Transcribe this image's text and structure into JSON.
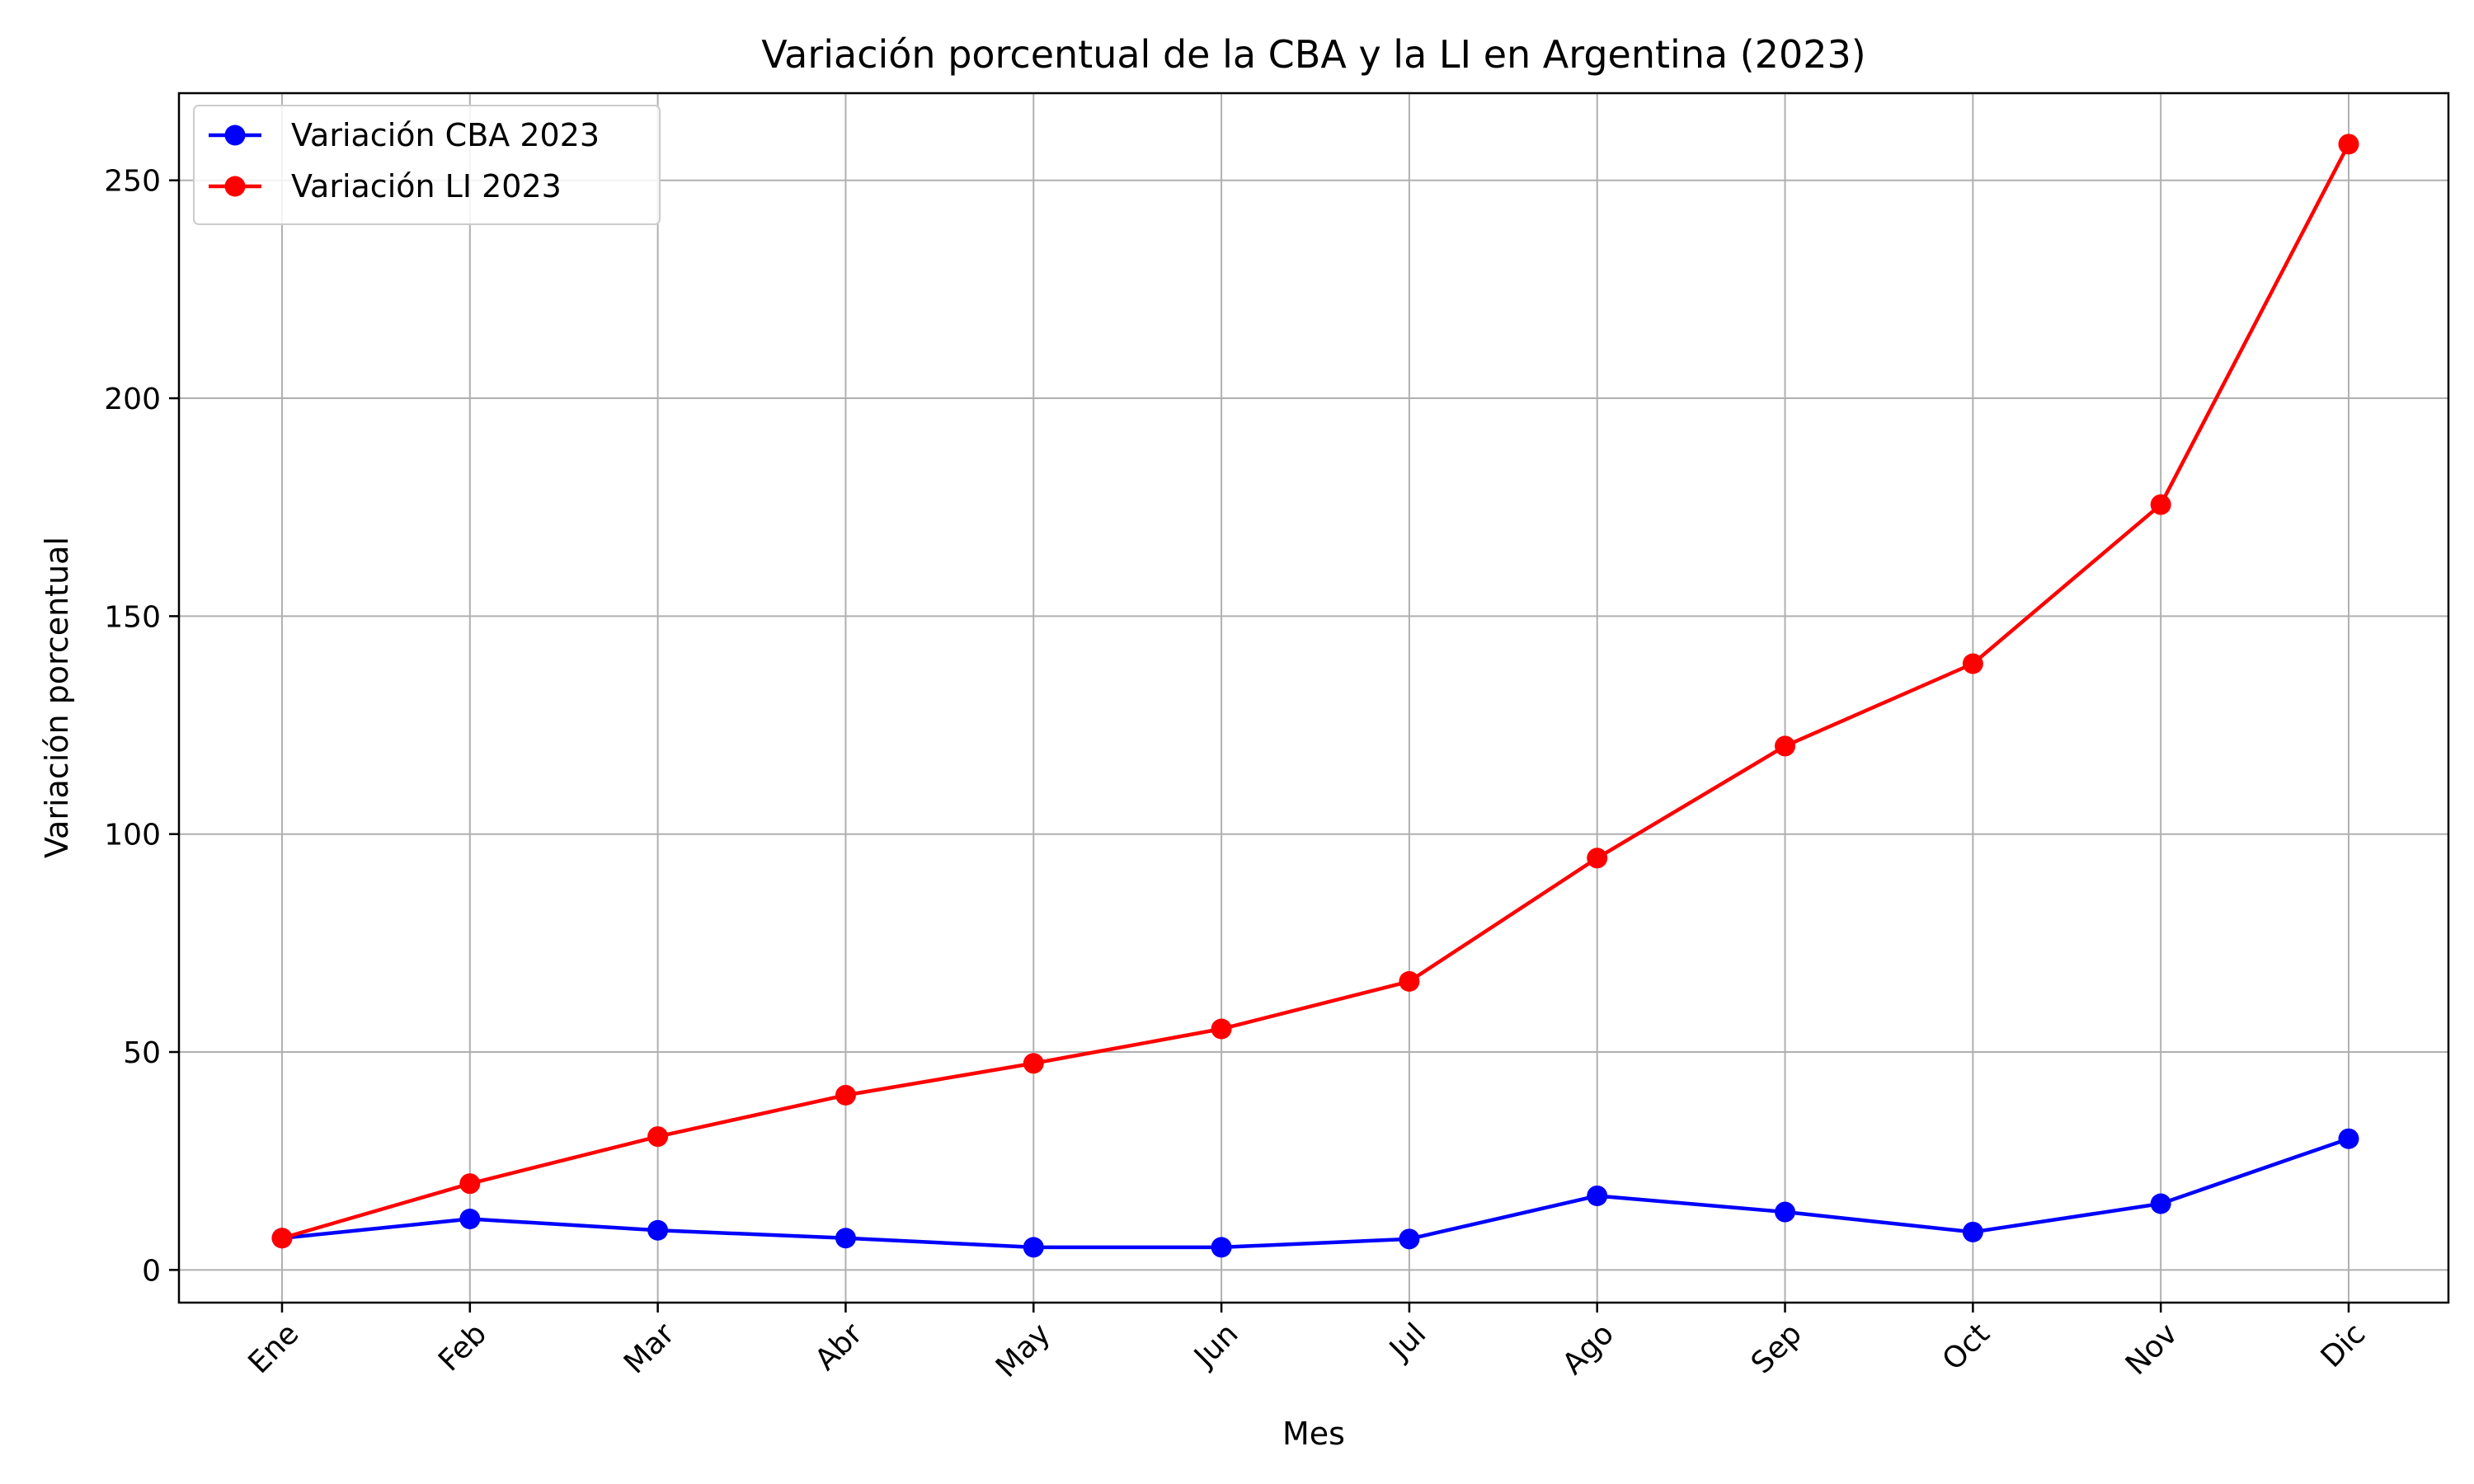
{
  "chart_data": {
    "type": "line",
    "title": "Variación porcentual de la CBA y la LI en Argentina (2023)",
    "xlabel": "Mes",
    "ylabel": "Variación porcentual",
    "categories": [
      "Ene",
      "Feb",
      "Mar",
      "Abr",
      "May",
      "Jun",
      "Jul",
      "Ago",
      "Sep",
      "Oct",
      "Nov",
      "Dic"
    ],
    "ylim": [
      -7.5,
      270
    ],
    "yticks": [
      0,
      50,
      100,
      150,
      200,
      250
    ],
    "grid": true,
    "legend_position": "top-left",
    "series": [
      {
        "name": "Variación CBA 2023",
        "color": "#0000ff",
        "marker": "circle",
        "values": [
          7.3,
          11.7,
          9.1,
          7.3,
          5.2,
          5.2,
          7.1,
          17.0,
          13.3,
          8.7,
          15.2,
          30.1
        ]
      },
      {
        "name": "Variación LI 2023",
        "color": "#ff0000",
        "marker": "circle",
        "values": [
          7.3,
          19.8,
          30.6,
          40.1,
          47.4,
          55.3,
          66.2,
          94.5,
          120.2,
          139.1,
          175.6,
          258.3
        ]
      }
    ]
  }
}
